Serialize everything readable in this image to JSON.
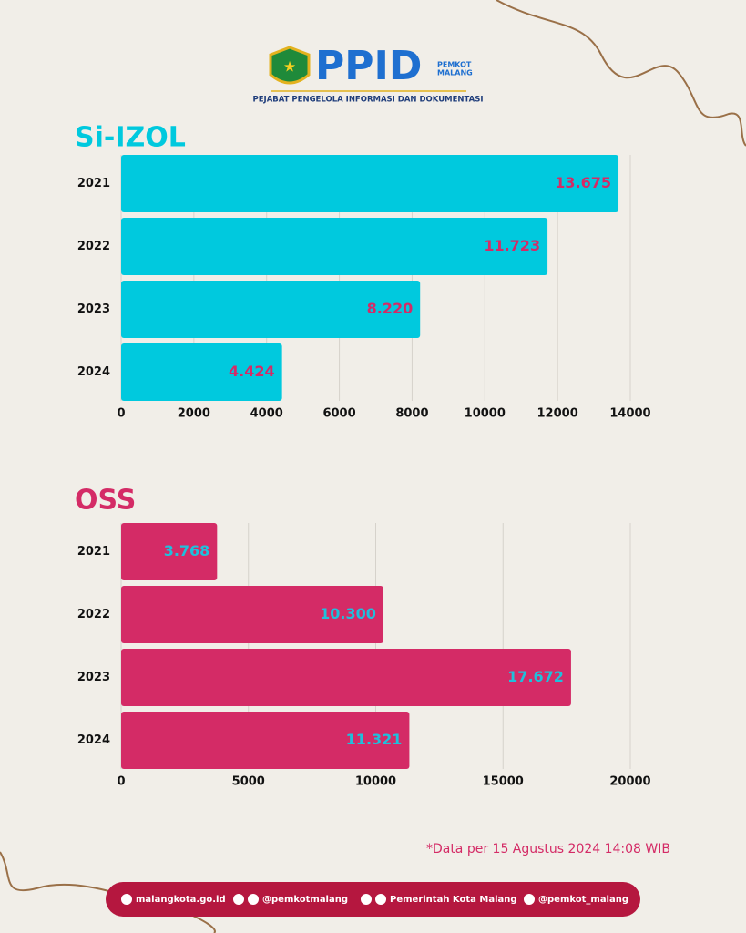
{
  "header": {
    "logo_text": "PPID",
    "logo_badge": [
      "PEMKOT",
      "MALANG"
    ],
    "subtitle": "PEJABAT PENGELOLA INFORMASI DAN DOKUMENTASI"
  },
  "chart_data": [
    {
      "type": "bar",
      "title": "Si-IZOL",
      "categories": [
        "2021",
        "2022",
        "2023",
        "2024"
      ],
      "values": [
        13675,
        11723,
        8220,
        4424
      ],
      "value_labels": [
        "13.675",
        "11.723",
        "8.220",
        "4.424"
      ],
      "color": "#00c9de",
      "label_color": "#d42b66",
      "xlim": [
        0,
        14000
      ],
      "xticks": [
        0,
        2000,
        4000,
        6000,
        8000,
        10000,
        12000,
        14000
      ],
      "grid": true
    },
    {
      "type": "bar",
      "title": "OSS",
      "categories": [
        "2021",
        "2022",
        "2023",
        "2024"
      ],
      "values": [
        3768,
        10300,
        17672,
        11321
      ],
      "value_labels": [
        "3.768",
        "10.300",
        "17.672",
        "11.321"
      ],
      "color": "#d42b66",
      "label_color": "#1fc0dc",
      "xlim": [
        0,
        20000
      ],
      "xticks": [
        0,
        5000,
        10000,
        15000,
        20000
      ],
      "grid": true
    }
  ],
  "footnote": "*Data per 15 Agustus 2024 14:08 WIB",
  "footer": [
    "malangkota.go.id",
    "@pemkotmalang",
    "Pemerintah Kota Malang",
    "@pemkot_malang"
  ]
}
